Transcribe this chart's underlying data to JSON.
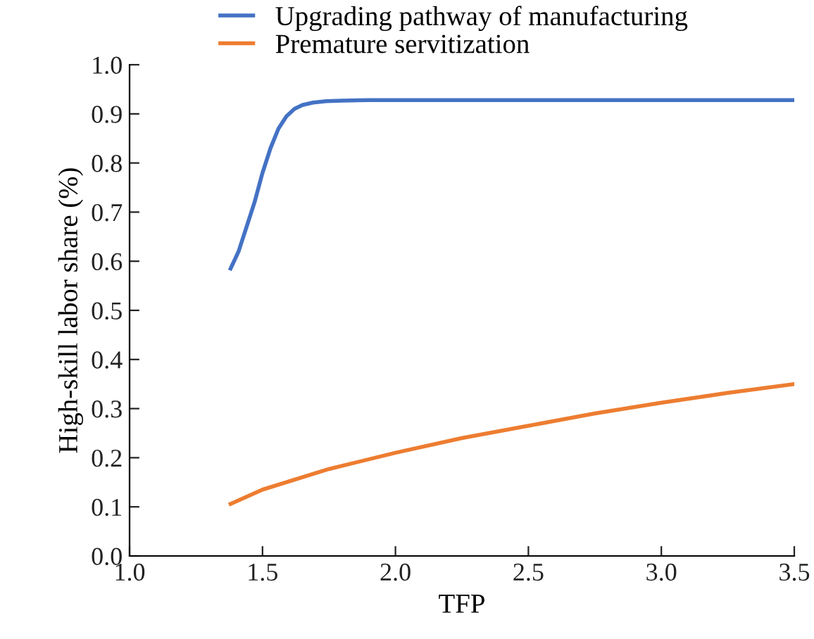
{
  "chart_data": {
    "type": "line",
    "xlabel": "TFP",
    "ylabel": "High-skill labor share (%)",
    "xlim": [
      1.0,
      3.5
    ],
    "xticks": [
      {
        "value": 1.0,
        "label": "1.0"
      },
      {
        "value": 1.5,
        "label": "1.5"
      },
      {
        "value": 2.0,
        "label": "2.0"
      },
      {
        "value": 2.5,
        "label": "2.5"
      },
      {
        "value": 3.0,
        "label": "3.0"
      },
      {
        "value": 3.5,
        "label": "3.5"
      }
    ],
    "ylim": [
      0.0,
      1.0
    ],
    "yticks": [
      {
        "value": 0.0,
        "label": "0.0"
      },
      {
        "value": 0.1,
        "label": "0.1"
      },
      {
        "value": 0.2,
        "label": "0.2"
      },
      {
        "value": 0.3,
        "label": "0.3"
      },
      {
        "value": 0.4,
        "label": "0.4"
      },
      {
        "value": 0.5,
        "label": "0.5"
      },
      {
        "value": 0.6,
        "label": "0.6"
      },
      {
        "value": 0.7,
        "label": "0.7"
      },
      {
        "value": 0.8,
        "label": "0.8"
      },
      {
        "value": 0.9,
        "label": "0.9"
      },
      {
        "value": 1.0,
        "label": "1.0"
      }
    ],
    "grid": false,
    "legend": "top",
    "line_style": "solid",
    "series": [
      {
        "name": "Upgrading pathway of manufacturing",
        "color": "#4472c4",
        "x": [
          1.38,
          1.41,
          1.44,
          1.47,
          1.5,
          1.53,
          1.56,
          1.59,
          1.62,
          1.65,
          1.69,
          1.74,
          1.8,
          1.9,
          2.2,
          2.6,
          3.0,
          3.5
        ],
        "values": [
          0.585,
          0.62,
          0.67,
          0.72,
          0.78,
          0.83,
          0.87,
          0.895,
          0.91,
          0.918,
          0.923,
          0.926,
          0.927,
          0.928,
          0.928,
          0.928,
          0.928,
          0.928
        ]
      },
      {
        "name": "Premature servitization",
        "color": "#ed7d31",
        "x": [
          1.38,
          1.5,
          1.75,
          2.0,
          2.25,
          2.5,
          2.75,
          3.0,
          3.25,
          3.5
        ],
        "values": [
          0.106,
          0.135,
          0.177,
          0.21,
          0.24,
          0.265,
          0.29,
          0.312,
          0.332,
          0.35
        ]
      }
    ]
  }
}
